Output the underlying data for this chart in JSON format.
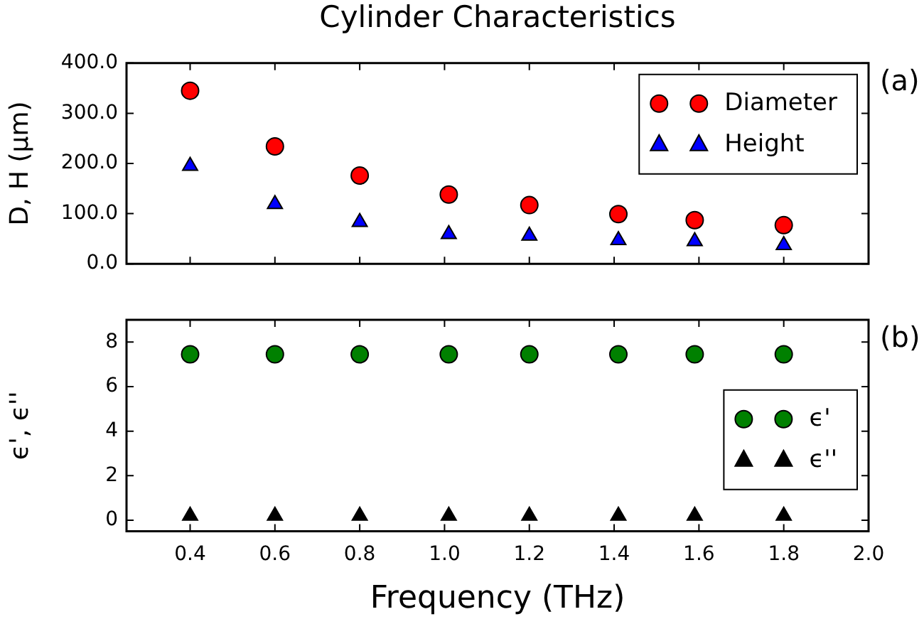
{
  "chart_data": [
    {
      "type": "scatter",
      "title": "Cylinder Characteristics",
      "ylabel": "D, H (μm)",
      "annotations": [
        "(a)"
      ],
      "x": [
        0.4,
        0.6,
        0.8,
        1.01,
        1.2,
        1.41,
        1.59,
        1.8
      ],
      "series": [
        {
          "name": "Diameter",
          "color": "#ff0000",
          "marker": "circle",
          "values": [
            345,
            234,
            176,
            138,
            117,
            99,
            87,
            77
          ]
        },
        {
          "name": "Height",
          "color": "#0000ff",
          "marker": "triangle",
          "values": [
            195,
            119,
            83,
            59,
            56,
            47,
            45,
            37
          ]
        }
      ],
      "xlim": [
        0.25,
        2.0
      ],
      "xticks": [
        {
          "value": 0.4,
          "label": null
        },
        {
          "value": 0.6,
          "label": null
        },
        {
          "value": 0.8,
          "label": null
        },
        {
          "value": 1.0,
          "label": null
        },
        {
          "value": 1.2,
          "label": null
        },
        {
          "value": 1.4,
          "label": null
        },
        {
          "value": 1.6,
          "label": null
        },
        {
          "value": 1.8,
          "label": null
        },
        {
          "value": 2.0,
          "label": null
        }
      ],
      "ylim": [
        0,
        400
      ],
      "yticks": [
        {
          "value": 0,
          "label": "0.0"
        },
        {
          "value": 100,
          "label": "100.0"
        },
        {
          "value": 200,
          "label": "200.0"
        },
        {
          "value": 300,
          "label": "300.0"
        },
        {
          "value": 400,
          "label": "400.0"
        }
      ],
      "tick_labels": "y",
      "grid": false,
      "legend": "top right"
    },
    {
      "type": "scatter",
      "xlabel": "Frequency (THz)",
      "ylabel": "ϵ', ϵ''",
      "annotations": [
        "(b)"
      ],
      "x": [
        0.4,
        0.6,
        0.8,
        1.01,
        1.2,
        1.41,
        1.59,
        1.8
      ],
      "series": [
        {
          "name": "ϵ'",
          "color": "#008000",
          "marker": "circle",
          "values": [
            7.45,
            7.45,
            7.45,
            7.45,
            7.45,
            7.45,
            7.45,
            7.45
          ]
        },
        {
          "name": "ϵ''",
          "color": "#000000",
          "marker": "triangle",
          "values": [
            0.2,
            0.2,
            0.2,
            0.2,
            0.2,
            0.2,
            0.2,
            0.2
          ]
        }
      ],
      "xlim": [
        0.25,
        2.0
      ],
      "xticks": [
        0.4,
        0.6,
        0.8,
        {
          "value": 1.0,
          "label": "1.0"
        },
        1.2,
        1.4,
        1.6,
        1.8,
        {
          "value": 2.0,
          "label": "2.0"
        }
      ],
      "ylim": [
        -0.5,
        9
      ],
      "yticks": [
        0,
        2,
        4,
        6,
        8
      ],
      "grid": false,
      "legend": "right"
    }
  ]
}
